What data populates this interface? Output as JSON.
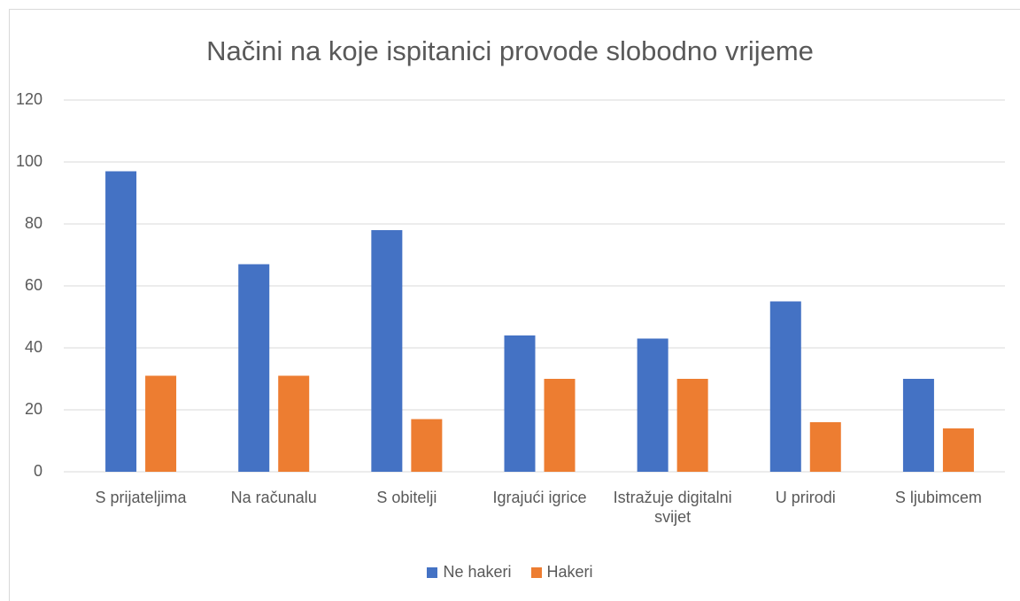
{
  "chart_data": {
    "type": "bar",
    "title": "Načini na koje ispitanici provode slobodno vrijeme",
    "categories": [
      "S prijateljima",
      "Na računalu",
      "S obitelji",
      "Igrajući igrice",
      "Istražuje digitalni svijet",
      "U prirodi",
      "S ljubimcem"
    ],
    "series": [
      {
        "name": "Ne hakeri",
        "color": "#4472c4",
        "values": [
          97,
          67,
          78,
          44,
          43,
          55,
          30
        ]
      },
      {
        "name": "Hakeri",
        "color": "#ed7d31",
        "values": [
          31,
          31,
          17,
          30,
          30,
          16,
          14
        ]
      }
    ],
    "ylim": [
      0,
      120
    ],
    "yticks": [
      0,
      20,
      40,
      60,
      80,
      100,
      120
    ],
    "grid": true,
    "legend": "bottom"
  }
}
